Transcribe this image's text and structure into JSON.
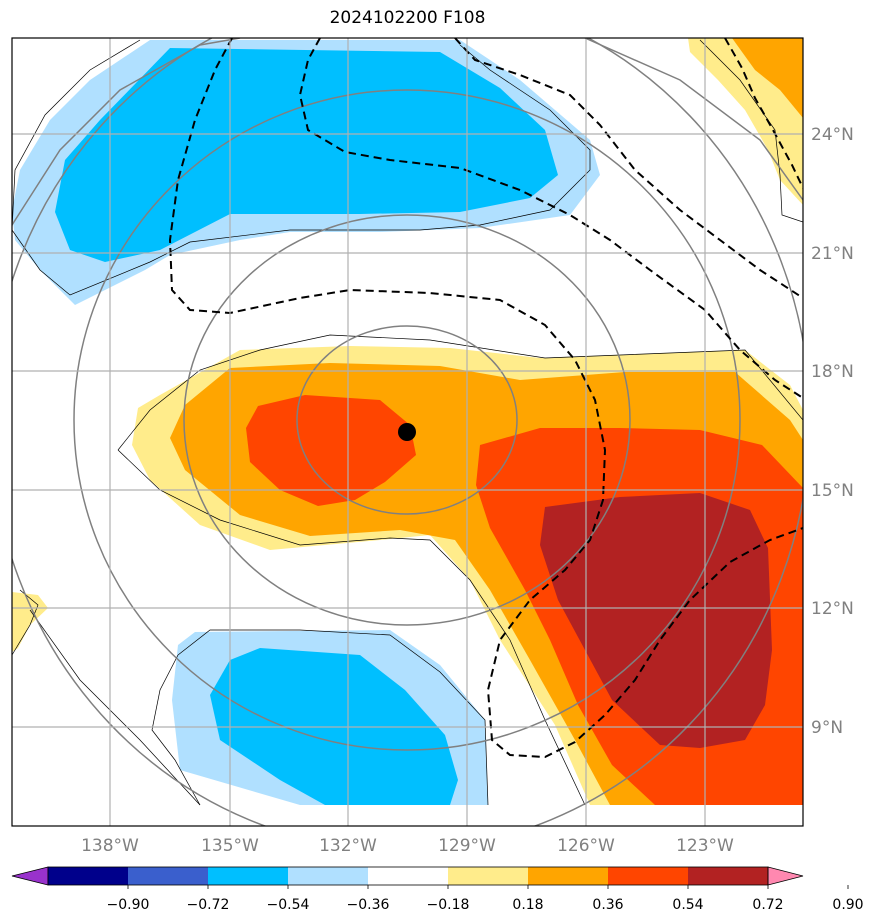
{
  "title": "2024102200 F108",
  "map": {
    "lon_ticks": [
      "138°W",
      "135°W",
      "132°W",
      "129°W",
      "126°W",
      "123°W"
    ],
    "lat_ticks": [
      "24°N",
      "21°N",
      "18°N",
      "15°N",
      "12°N",
      "9°N"
    ],
    "grid": true,
    "storm_center": {
      "lon": "130.6°W",
      "lat": "16.5°N"
    }
  },
  "colorbar": {
    "labels": [
      "−0.90",
      "−0.72",
      "−0.54",
      "−0.36",
      "−0.18",
      "0.18",
      "0.36",
      "0.54",
      "0.72",
      "0.90"
    ],
    "colors": [
      "#9932cc",
      "#00008b",
      "#3a5fcd",
      "#00bfff",
      "#b0e0ff",
      "#ffffff",
      "#ffec8b",
      "#ffa500",
      "#ff4500",
      "#b22222",
      "#ff88b0"
    ]
  }
}
